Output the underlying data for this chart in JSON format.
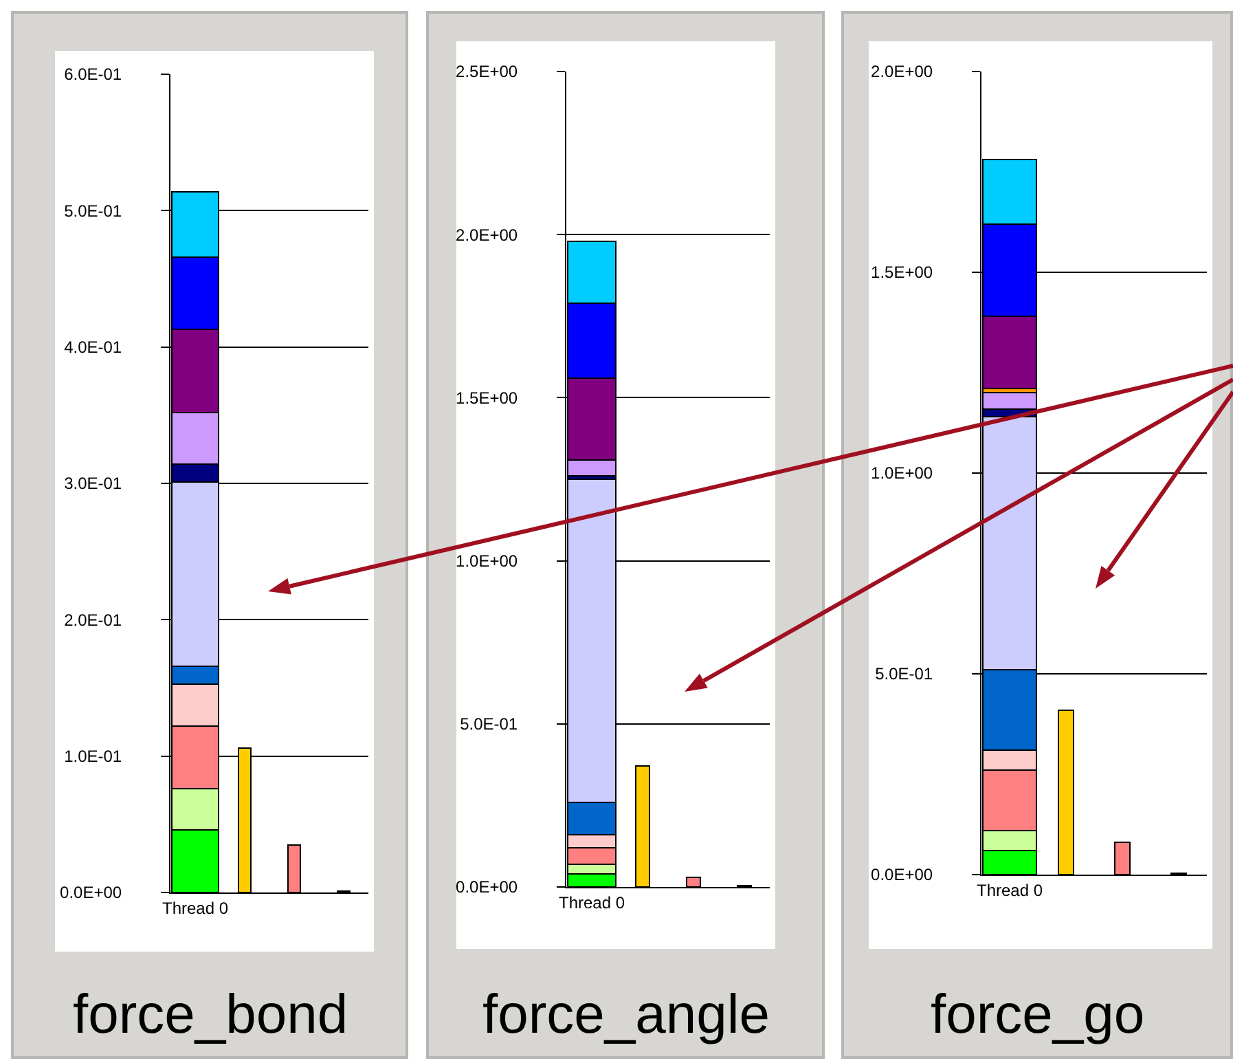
{
  "chart_data": [
    {
      "type": "bar",
      "stacked": true,
      "xlabel": "force_bond",
      "categories": [
        "Thread 0",
        null,
        null,
        null
      ],
      "ylim": [
        0,
        0.6
      ],
      "yticks": [
        {
          "value": 0,
          "label": "0.0E+00"
        },
        {
          "value": 0.1,
          "label": "1.0E-01"
        },
        {
          "value": 0.2,
          "label": "2.0E-01"
        },
        {
          "value": 0.3,
          "label": "3.0E-01"
        },
        {
          "value": 0.4,
          "label": "4.0E-01"
        },
        {
          "value": 0.5,
          "label": "5.0E-01"
        },
        {
          "value": 0.6,
          "label": "6.0E-01"
        }
      ],
      "grid": "y",
      "series": [
        {
          "color": "#00ff00",
          "values": [
            0.046,
            null,
            null,
            null
          ]
        },
        {
          "color": "#ccff99",
          "values": [
            0.03,
            null,
            null,
            null
          ]
        },
        {
          "color": "#ff8080",
          "values": [
            0.046,
            null,
            null,
            null
          ]
        },
        {
          "color": "#ffcccc",
          "values": [
            0.031,
            null,
            null,
            null
          ]
        },
        {
          "color": "#0066cc",
          "values": [
            0.013,
            null,
            null,
            null
          ]
        },
        {
          "color": "#ccccff",
          "values": [
            0.135,
            null,
            null,
            null
          ]
        },
        {
          "color": "#000080",
          "values": [
            0.013,
            null,
            null,
            null
          ]
        },
        {
          "color": "#cc99ff",
          "values": [
            0.038,
            null,
            null,
            null
          ]
        },
        {
          "color": "#800080",
          "values": [
            0.061,
            null,
            null,
            null
          ]
        },
        {
          "color": "#0000ff",
          "values": [
            0.053,
            null,
            null,
            null
          ]
        },
        {
          "color": "#00ccff",
          "values": [
            0.048,
            null,
            null,
            null
          ]
        },
        {
          "color": "#ffcc00",
          "values": [
            null,
            0.106,
            null,
            null
          ]
        },
        {
          "color": "#ff8080",
          "values": [
            null,
            null,
            0.035,
            null
          ]
        },
        {
          "color": "#000000",
          "values": [
            null,
            null,
            null,
            0.001
          ]
        }
      ]
    },
    {
      "type": "bar",
      "stacked": true,
      "xlabel": "force_angle",
      "categories": [
        "Thread 0",
        null,
        null,
        null
      ],
      "ylim": [
        0,
        2.5
      ],
      "yticks": [
        {
          "value": 0,
          "label": "0.0E+00"
        },
        {
          "value": 0.5,
          "label": "5.0E-01"
        },
        {
          "value": 1,
          "label": "1.0E+00"
        },
        {
          "value": 1.5,
          "label": "1.5E+00"
        },
        {
          "value": 2,
          "label": "2.0E+00"
        },
        {
          "value": 2.5,
          "label": "2.5E+00"
        }
      ],
      "grid": "y",
      "series": [
        {
          "color": "#00ff00",
          "values": [
            0.04,
            null,
            null,
            null
          ]
        },
        {
          "color": "#ccff99",
          "values": [
            0.03,
            null,
            null,
            null
          ]
        },
        {
          "color": "#ff8080",
          "values": [
            0.05,
            null,
            null,
            null
          ]
        },
        {
          "color": "#ffcccc",
          "values": [
            0.04,
            null,
            null,
            null
          ]
        },
        {
          "color": "#0066cc",
          "values": [
            0.1,
            null,
            null,
            null
          ]
        },
        {
          "color": "#ccccff",
          "values": [
            0.99,
            null,
            null,
            null
          ]
        },
        {
          "color": "#000080",
          "values": [
            0.01,
            null,
            null,
            null
          ]
        },
        {
          "color": "#cc99ff",
          "values": [
            0.05,
            null,
            null,
            null
          ]
        },
        {
          "color": "#800080",
          "values": [
            0.25,
            null,
            null,
            null
          ]
        },
        {
          "color": "#0000ff",
          "values": [
            0.23,
            null,
            null,
            null
          ]
        },
        {
          "color": "#00ccff",
          "values": [
            0.19,
            null,
            null,
            null
          ]
        },
        {
          "color": "#ffcc00",
          "values": [
            null,
            0.37,
            null,
            null
          ]
        },
        {
          "color": "#ff8080",
          "values": [
            null,
            null,
            0.03,
            null
          ]
        },
        {
          "color": "#000000",
          "values": [
            null,
            null,
            null,
            0.004
          ]
        }
      ]
    },
    {
      "type": "bar",
      "stacked": true,
      "xlabel": "force_go",
      "categories": [
        "Thread 0",
        null,
        null,
        null
      ],
      "ylim": [
        0,
        2
      ],
      "yticks": [
        {
          "value": 0,
          "label": "0.0E+00"
        },
        {
          "value": 0.5,
          "label": "5.0E-01"
        },
        {
          "value": 1,
          "label": "1.0E+00"
        },
        {
          "value": 1.5,
          "label": "1.5E+00"
        },
        {
          "value": 2,
          "label": "2.0E+00"
        }
      ],
      "grid": "y",
      "series": [
        {
          "color": "#00ff00",
          "values": [
            0.06,
            null,
            null,
            null
          ]
        },
        {
          "color": "#ccff99",
          "values": [
            0.05,
            null,
            null,
            null
          ]
        },
        {
          "color": "#ff8080",
          "values": [
            0.15,
            null,
            null,
            null
          ]
        },
        {
          "color": "#ffcccc",
          "values": [
            0.05,
            null,
            null,
            null
          ]
        },
        {
          "color": "#0066cc",
          "values": [
            0.2,
            null,
            null,
            null
          ]
        },
        {
          "color": "#ccccff",
          "values": [
            0.63,
            null,
            null,
            null
          ]
        },
        {
          "color": "#000080",
          "values": [
            0.02,
            null,
            null,
            null
          ]
        },
        {
          "color": "#cc99ff",
          "values": [
            0.04,
            null,
            null,
            null
          ]
        },
        {
          "color": "#ff9900",
          "values": [
            0.01,
            null,
            null,
            null
          ]
        },
        {
          "color": "#800080",
          "values": [
            0.18,
            null,
            null,
            null
          ]
        },
        {
          "color": "#0000ff",
          "values": [
            0.23,
            null,
            null,
            null
          ]
        },
        {
          "color": "#00ccff",
          "values": [
            0.16,
            null,
            null,
            null
          ]
        },
        {
          "color": "#ffcc00",
          "values": [
            null,
            0.41,
            null,
            null
          ]
        },
        {
          "color": "#ff8080",
          "values": [
            null,
            null,
            0.08,
            null
          ]
        },
        {
          "color": "#000000",
          "values": [
            null,
            null,
            null,
            0.003
          ]
        }
      ]
    }
  ]
}
